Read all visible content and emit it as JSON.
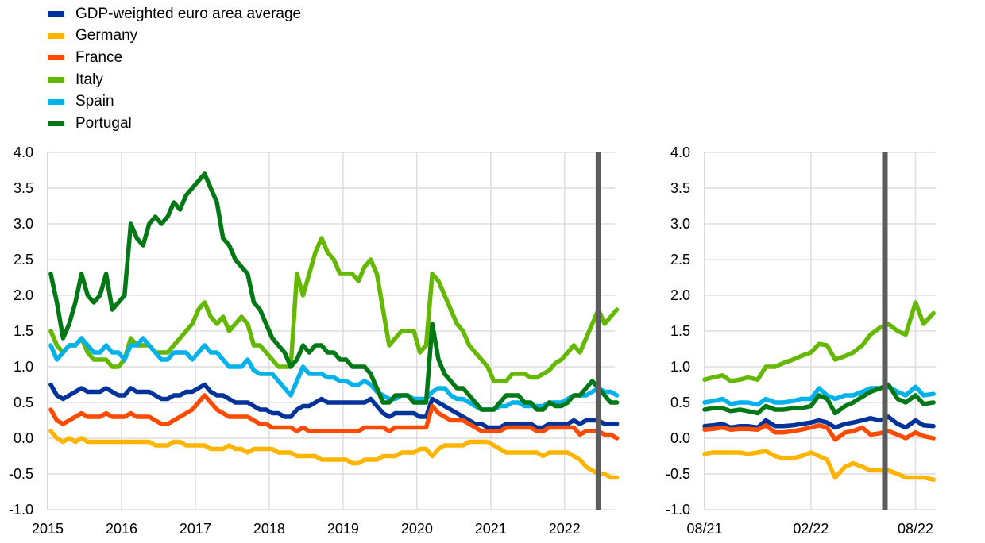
{
  "legend": {
    "placement": "top-left"
  },
  "event_line_color": "#5c5c5c",
  "chart_data": [
    {
      "type": "line",
      "ylim": [
        -1.0,
        4.0
      ],
      "yticks": [
        "4.0",
        "3.5",
        "3.0",
        "2.5",
        "2.0",
        "1.5",
        "1.0",
        "0.5",
        "0.0",
        "-0.5",
        "-1.0"
      ],
      "xlim": [
        "2015-01",
        "2022-09"
      ],
      "xticks": [
        "2015",
        "2016",
        "2017",
        "2018",
        "2019",
        "2020",
        "2021",
        "2022"
      ],
      "grid": true,
      "event_line": "2022-06",
      "x": [
        "2015-01",
        "2015-02",
        "2015-03",
        "2015-04",
        "2015-05",
        "2015-06",
        "2015-07",
        "2015-08",
        "2015-09",
        "2015-10",
        "2015-11",
        "2015-12",
        "2016-01",
        "2016-02",
        "2016-03",
        "2016-04",
        "2016-05",
        "2016-06",
        "2016-07",
        "2016-08",
        "2016-09",
        "2016-10",
        "2016-11",
        "2016-12",
        "2017-01",
        "2017-02",
        "2017-03",
        "2017-04",
        "2017-05",
        "2017-06",
        "2017-07",
        "2017-08",
        "2017-09",
        "2017-10",
        "2017-11",
        "2017-12",
        "2018-01",
        "2018-02",
        "2018-03",
        "2018-04",
        "2018-05",
        "2018-06",
        "2018-07",
        "2018-08",
        "2018-09",
        "2018-10",
        "2018-11",
        "2018-12",
        "2019-01",
        "2019-02",
        "2019-03",
        "2019-04",
        "2019-05",
        "2019-06",
        "2019-07",
        "2019-08",
        "2019-09",
        "2019-10",
        "2019-11",
        "2019-12",
        "2020-01",
        "2020-02",
        "2020-03",
        "2020-04",
        "2020-05",
        "2020-06",
        "2020-07",
        "2020-08",
        "2020-09",
        "2020-10",
        "2020-11",
        "2020-12",
        "2021-01",
        "2021-02",
        "2021-03",
        "2021-04",
        "2021-05",
        "2021-06",
        "2021-07",
        "2021-08",
        "2021-09",
        "2021-10",
        "2021-11",
        "2021-12",
        "2022-01",
        "2022-02",
        "2022-03",
        "2022-04",
        "2022-05",
        "2022-06",
        "2022-07",
        "2022-08",
        "2022-09"
      ],
      "series": [
        {
          "name": "GDP-weighted euro area average",
          "color": "#003299",
          "values": [
            0.75,
            0.6,
            0.55,
            0.6,
            0.65,
            0.7,
            0.65,
            0.65,
            0.65,
            0.7,
            0.65,
            0.6,
            0.6,
            0.7,
            0.65,
            0.65,
            0.65,
            0.6,
            0.55,
            0.55,
            0.6,
            0.6,
            0.65,
            0.65,
            0.7,
            0.75,
            0.65,
            0.6,
            0.6,
            0.55,
            0.5,
            0.5,
            0.5,
            0.45,
            0.4,
            0.4,
            0.35,
            0.35,
            0.3,
            0.3,
            0.4,
            0.45,
            0.45,
            0.5,
            0.55,
            0.5,
            0.5,
            0.5,
            0.5,
            0.5,
            0.5,
            0.5,
            0.55,
            0.45,
            0.35,
            0.3,
            0.35,
            0.35,
            0.35,
            0.35,
            0.3,
            0.3,
            0.55,
            0.5,
            0.45,
            0.4,
            0.35,
            0.3,
            0.25,
            0.2,
            0.2,
            0.15,
            0.15,
            0.15,
            0.2,
            0.2,
            0.2,
            0.2,
            0.2,
            0.15,
            0.15,
            0.2,
            0.2,
            0.2,
            0.2,
            0.25,
            0.2,
            0.25,
            0.25,
            0.25,
            0.2,
            0.2,
            0.2
          ]
        },
        {
          "name": "Germany",
          "color": "#ffb400",
          "values": [
            0.1,
            0.0,
            -0.05,
            0.0,
            -0.05,
            0.0,
            -0.05,
            -0.05,
            -0.05,
            -0.05,
            -0.05,
            -0.05,
            -0.05,
            -0.05,
            -0.05,
            -0.05,
            -0.05,
            -0.1,
            -0.1,
            -0.1,
            -0.05,
            -0.05,
            -0.1,
            -0.1,
            -0.1,
            -0.1,
            -0.15,
            -0.15,
            -0.15,
            -0.1,
            -0.15,
            -0.15,
            -0.2,
            -0.15,
            -0.15,
            -0.15,
            -0.15,
            -0.2,
            -0.2,
            -0.2,
            -0.25,
            -0.25,
            -0.25,
            -0.25,
            -0.3,
            -0.3,
            -0.3,
            -0.3,
            -0.3,
            -0.35,
            -0.35,
            -0.3,
            -0.3,
            -0.3,
            -0.25,
            -0.25,
            -0.25,
            -0.2,
            -0.2,
            -0.2,
            -0.15,
            -0.15,
            -0.25,
            -0.15,
            -0.1,
            -0.1,
            -0.1,
            -0.1,
            -0.05,
            -0.05,
            -0.05,
            -0.05,
            -0.1,
            -0.15,
            -0.2,
            -0.2,
            -0.2,
            -0.2,
            -0.2,
            -0.2,
            -0.25,
            -0.2,
            -0.2,
            -0.2,
            -0.2,
            -0.25,
            -0.3,
            -0.4,
            -0.45,
            -0.5,
            -0.5,
            -0.55,
            -0.55
          ]
        },
        {
          "name": "France",
          "color": "#ff4b00",
          "values": [
            0.4,
            0.25,
            0.2,
            0.25,
            0.3,
            0.35,
            0.3,
            0.3,
            0.3,
            0.35,
            0.3,
            0.3,
            0.3,
            0.35,
            0.3,
            0.3,
            0.3,
            0.25,
            0.2,
            0.2,
            0.25,
            0.3,
            0.35,
            0.4,
            0.5,
            0.6,
            0.5,
            0.4,
            0.35,
            0.3,
            0.3,
            0.3,
            0.3,
            0.25,
            0.2,
            0.2,
            0.15,
            0.15,
            0.15,
            0.15,
            0.1,
            0.15,
            0.1,
            0.1,
            0.1,
            0.1,
            0.1,
            0.1,
            0.1,
            0.1,
            0.1,
            0.15,
            0.15,
            0.15,
            0.15,
            0.1,
            0.15,
            0.15,
            0.15,
            0.15,
            0.15,
            0.15,
            0.45,
            0.35,
            0.3,
            0.25,
            0.25,
            0.25,
            0.2,
            0.15,
            0.1,
            0.1,
            0.1,
            0.1,
            0.15,
            0.15,
            0.15,
            0.15,
            0.15,
            0.1,
            0.1,
            0.15,
            0.15,
            0.15,
            0.15,
            0.15,
            0.05,
            0.1,
            0.1,
            0.1,
            0.05,
            0.05,
            0.0
          ]
        },
        {
          "name": "Italy",
          "color": "#65b800",
          "values": [
            1.5,
            1.3,
            1.2,
            1.3,
            1.3,
            1.4,
            1.2,
            1.1,
            1.1,
            1.1,
            1.0,
            1.0,
            1.1,
            1.4,
            1.3,
            1.3,
            1.3,
            1.2,
            1.2,
            1.2,
            1.3,
            1.4,
            1.5,
            1.6,
            1.8,
            1.9,
            1.7,
            1.6,
            1.7,
            1.5,
            1.6,
            1.7,
            1.6,
            1.3,
            1.3,
            1.2,
            1.1,
            1.0,
            1.0,
            1.0,
            2.3,
            2.0,
            2.3,
            2.6,
            2.8,
            2.6,
            2.5,
            2.3,
            2.3,
            2.3,
            2.2,
            2.4,
            2.5,
            2.3,
            1.8,
            1.3,
            1.4,
            1.5,
            1.5,
            1.5,
            1.2,
            1.3,
            2.3,
            2.2,
            2.0,
            1.8,
            1.6,
            1.5,
            1.3,
            1.2,
            1.1,
            1.0,
            0.8,
            0.8,
            0.8,
            0.9,
            0.9,
            0.9,
            0.85,
            0.85,
            0.9,
            0.95,
            1.05,
            1.1,
            1.2,
            1.3,
            1.2,
            1.4,
            1.6,
            1.8,
            1.6,
            1.7,
            1.8
          ]
        },
        {
          "name": "Spain",
          "color": "#00b1ea",
          "values": [
            1.3,
            1.1,
            1.2,
            1.3,
            1.3,
            1.4,
            1.3,
            1.2,
            1.2,
            1.3,
            1.2,
            1.2,
            1.1,
            1.3,
            1.3,
            1.4,
            1.3,
            1.2,
            1.1,
            1.1,
            1.2,
            1.2,
            1.2,
            1.1,
            1.2,
            1.3,
            1.2,
            1.2,
            1.1,
            1.0,
            1.0,
            1.0,
            1.1,
            0.95,
            0.9,
            0.9,
            0.9,
            0.8,
            0.7,
            0.6,
            0.8,
            1.0,
            0.9,
            0.9,
            0.9,
            0.85,
            0.85,
            0.8,
            0.8,
            0.75,
            0.75,
            0.8,
            0.75,
            0.65,
            0.6,
            0.55,
            0.55,
            0.6,
            0.6,
            0.55,
            0.55,
            0.55,
            0.65,
            0.7,
            0.7,
            0.6,
            0.55,
            0.55,
            0.5,
            0.45,
            0.4,
            0.4,
            0.4,
            0.45,
            0.45,
            0.5,
            0.5,
            0.45,
            0.45,
            0.45,
            0.45,
            0.5,
            0.5,
            0.5,
            0.55,
            0.6,
            0.6,
            0.6,
            0.65,
            0.7,
            0.65,
            0.65,
            0.6
          ]
        },
        {
          "name": "Portugal",
          "color": "#007816",
          "values": [
            2.3,
            1.9,
            1.4,
            1.6,
            1.9,
            2.3,
            2.0,
            1.9,
            2.0,
            2.3,
            1.8,
            1.9,
            2.0,
            3.0,
            2.8,
            2.7,
            3.0,
            3.1,
            3.0,
            3.1,
            3.3,
            3.2,
            3.4,
            3.5,
            3.6,
            3.7,
            3.5,
            3.3,
            2.8,
            2.7,
            2.5,
            2.4,
            2.3,
            1.9,
            1.8,
            1.6,
            1.4,
            1.3,
            1.2,
            1.0,
            1.1,
            1.3,
            1.2,
            1.3,
            1.3,
            1.2,
            1.2,
            1.1,
            1.1,
            1.0,
            1.0,
            1.0,
            0.9,
            0.7,
            0.5,
            0.5,
            0.6,
            0.6,
            0.6,
            0.5,
            0.5,
            0.5,
            1.6,
            1.1,
            0.9,
            0.8,
            0.7,
            0.7,
            0.6,
            0.5,
            0.4,
            0.4,
            0.4,
            0.5,
            0.6,
            0.6,
            0.6,
            0.5,
            0.5,
            0.4,
            0.4,
            0.5,
            0.45,
            0.45,
            0.5,
            0.6,
            0.6,
            0.7,
            0.8,
            0.7,
            0.6,
            0.5,
            0.5
          ]
        }
      ]
    },
    {
      "type": "line",
      "ylim": [
        -1.0,
        4.0
      ],
      "yticks": [
        "4.0",
        "3.5",
        "3.0",
        "2.5",
        "2.0",
        "1.5",
        "1.0",
        "0.5",
        "0.0",
        "-0.5",
        "-1.0"
      ],
      "xlim": [
        "2021-08-01",
        "2022-09-05"
      ],
      "xticks": [
        {
          "label": "08/21",
          "date": "2021-08-01"
        },
        {
          "label": "02/22",
          "date": "2022-02-01"
        },
        {
          "label": "08/22",
          "date": "2022-08-01"
        }
      ],
      "grid": true,
      "event_line": "2022-06-09",
      "x": [
        "2021-08-01",
        "2021-08-15",
        "2021-09-01",
        "2021-09-15",
        "2021-10-01",
        "2021-10-15",
        "2021-11-01",
        "2021-11-15",
        "2021-12-01",
        "2021-12-15",
        "2022-01-01",
        "2022-01-15",
        "2022-02-01",
        "2022-02-15",
        "2022-03-01",
        "2022-03-15",
        "2022-04-01",
        "2022-04-15",
        "2022-05-01",
        "2022-05-15",
        "2022-06-01",
        "2022-06-15",
        "2022-07-01",
        "2022-07-15",
        "2022-08-01",
        "2022-08-15",
        "2022-09-01"
      ],
      "series": [
        {
          "name": "GDP-weighted euro area average",
          "color": "#003299",
          "values": [
            0.17,
            0.18,
            0.2,
            0.15,
            0.17,
            0.17,
            0.15,
            0.25,
            0.17,
            0.17,
            0.18,
            0.2,
            0.22,
            0.25,
            0.22,
            0.15,
            0.2,
            0.22,
            0.25,
            0.28,
            0.25,
            0.3,
            0.2,
            0.15,
            0.25,
            0.18,
            0.17
          ]
        },
        {
          "name": "Germany",
          "color": "#ffb400",
          "values": [
            -0.22,
            -0.2,
            -0.2,
            -0.2,
            -0.2,
            -0.22,
            -0.2,
            -0.18,
            -0.25,
            -0.28,
            -0.28,
            -0.25,
            -0.2,
            -0.25,
            -0.3,
            -0.55,
            -0.4,
            -0.35,
            -0.4,
            -0.45,
            -0.45,
            -0.45,
            -0.5,
            -0.55,
            -0.55,
            -0.55,
            -0.58
          ]
        },
        {
          "name": "France",
          "color": "#ff4b00",
          "values": [
            0.12,
            0.13,
            0.15,
            0.12,
            0.13,
            0.13,
            0.12,
            0.18,
            0.08,
            0.08,
            0.1,
            0.12,
            0.15,
            0.18,
            0.15,
            -0.02,
            0.08,
            0.1,
            0.15,
            0.05,
            0.07,
            0.1,
            0.05,
            0.0,
            0.08,
            0.03,
            0.0
          ]
        },
        {
          "name": "Italy",
          "color": "#65b800",
          "values": [
            0.82,
            0.85,
            0.88,
            0.8,
            0.82,
            0.85,
            0.82,
            1.0,
            1.0,
            1.05,
            1.1,
            1.15,
            1.2,
            1.32,
            1.3,
            1.1,
            1.15,
            1.2,
            1.3,
            1.45,
            1.55,
            1.6,
            1.5,
            1.45,
            1.9,
            1.6,
            1.75
          ]
        },
        {
          "name": "Spain",
          "color": "#00b1ea",
          "values": [
            0.5,
            0.52,
            0.55,
            0.48,
            0.5,
            0.5,
            0.47,
            0.55,
            0.5,
            0.5,
            0.52,
            0.55,
            0.55,
            0.7,
            0.6,
            0.55,
            0.6,
            0.6,
            0.65,
            0.7,
            0.7,
            0.72,
            0.65,
            0.6,
            0.72,
            0.6,
            0.62
          ]
        },
        {
          "name": "Portugal",
          "color": "#007816",
          "values": [
            0.4,
            0.42,
            0.42,
            0.38,
            0.4,
            0.38,
            0.35,
            0.45,
            0.4,
            0.4,
            0.42,
            0.42,
            0.45,
            0.6,
            0.55,
            0.35,
            0.45,
            0.5,
            0.58,
            0.65,
            0.7,
            0.75,
            0.55,
            0.5,
            0.6,
            0.48,
            0.5
          ]
        }
      ]
    }
  ]
}
